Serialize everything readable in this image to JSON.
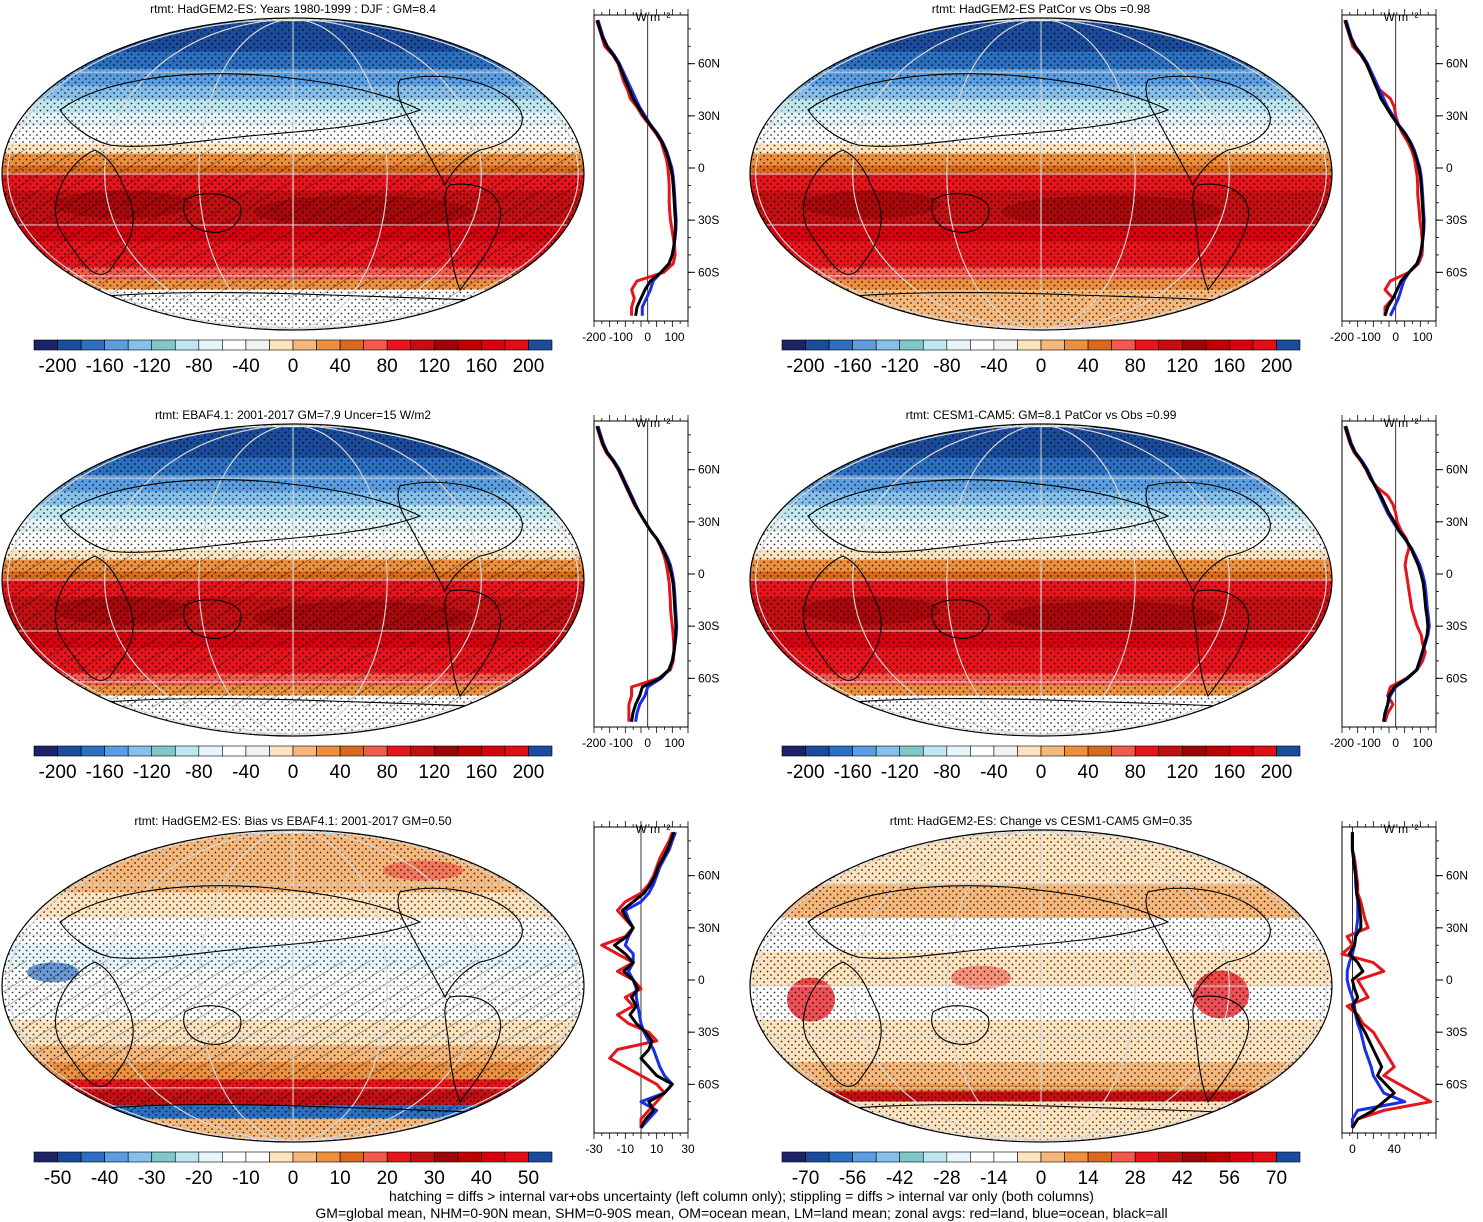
{
  "footer": {
    "line1": "hatching = diffs > internal var+obs uncertainty (left column only); stippling = diffs > internal var only (both columns)",
    "line2": "GM=global mean, NHM=0-90N mean, SHM=0-90S mean, OM=ocean mean, LM=land mean; zonal avgs: red=land, blue=ocean, black=all"
  },
  "units_label": "W m⁻²",
  "lat_ticks": [
    "60N",
    "30N",
    "0",
    "30S",
    "60S"
  ],
  "lat_values": [
    60,
    30,
    0,
    -30,
    -60
  ],
  "zonal_lat": [
    85,
    80,
    75,
    70,
    65,
    60,
    55,
    50,
    45,
    40,
    35,
    30,
    25,
    20,
    15,
    10,
    5,
    0,
    -5,
    -10,
    -15,
    -20,
    -25,
    -30,
    -35,
    -40,
    -45,
    -50,
    -55,
    -60,
    -65,
    -70,
    -75,
    -80,
    -85
  ],
  "colors": {
    "land": "#e8141c",
    "ocean": "#1a2ee8",
    "all": "#000000",
    "palette": [
      "#1c2366",
      "#1b4b9b",
      "#2b6fc0",
      "#5a9de0",
      "#86c0ea",
      "#7fc8c7",
      "#bfe7ef",
      "#e6f6fa",
      "#ffffff",
      "#f2f2f2",
      "#fde4bf",
      "#f6b77a",
      "#ec8f3f",
      "#d9691c",
      "#f35a4e",
      "#e8141c",
      "#c40f12",
      "#9e0508",
      "#bf0000",
      "#d7000f",
      "#e20e15",
      "#1b4b9b"
    ]
  },
  "panels": [
    {
      "id": "model-climatology",
      "title": "rtmt: HadGEM2-ES: Years 1980-1999 : DJF : GM=8.4",
      "colorbar_labels": [
        "-200",
        "-160",
        "-120",
        "-80",
        "-40",
        "0",
        "40",
        "80",
        "120",
        "160",
        "200"
      ],
      "zonal_ticks": [
        "-200",
        "-100",
        "0",
        "100"
      ],
      "zonal_tick_values": [
        -200,
        -100,
        0,
        100
      ],
      "chart_data": {
        "type": "line",
        "xlim": [
          -200,
          150
        ],
        "series": [
          {
            "name": "land",
            "color": "land",
            "values": [
              -190,
              -180,
              -170,
              -160,
              -130,
              -110,
              -100,
              -90,
              -75,
              -65,
              -40,
              -20,
              5,
              30,
              50,
              60,
              70,
              75,
              78,
              80,
              80,
              80,
              82,
              85,
              90,
              95,
              100,
              102,
              95,
              60,
              -40,
              -60,
              -50,
              -60,
              -60
            ]
          },
          {
            "name": "ocean",
            "color": "ocean",
            "values": [
              -185,
              -175,
              -165,
              -150,
              -125,
              -105,
              -90,
              -75,
              -60,
              -45,
              -30,
              -10,
              10,
              35,
              55,
              70,
              80,
              90,
              95,
              98,
              100,
              102,
              104,
              106,
              105,
              102,
              98,
              92,
              80,
              50,
              20,
              10,
              -5,
              -20,
              -20
            ]
          },
          {
            "name": "all",
            "color": "all",
            "values": [
              -188,
              -178,
              -168,
              -152,
              -128,
              -108,
              -95,
              -82,
              -68,
              -55,
              -35,
              -15,
              8,
              33,
              53,
              67,
              78,
              86,
              92,
              95,
              97,
              99,
              101,
              103,
              103,
              101,
              97,
              91,
              79,
              50,
              10,
              -10,
              -25,
              -40,
              -45
            ]
          }
        ]
      }
    },
    {
      "id": "model-vs-obs-patcor",
      "title": "rtmt: HadGEM2-ES PatCor vs Obs =0.98",
      "colorbar_labels": [
        "-200",
        "-160",
        "-120",
        "-80",
        "-40",
        "0",
        "40",
        "80",
        "120",
        "160",
        "200"
      ],
      "zonal_ticks": [
        "-200",
        "-100",
        "0",
        "100"
      ],
      "zonal_tick_values": [
        -200,
        -100,
        0,
        100
      ],
      "chart_data": {
        "type": "line",
        "xlim": [
          -200,
          150
        ],
        "series": [
          {
            "name": "land",
            "color": "land",
            "values": [
              -190,
              -180,
              -170,
              -160,
              -130,
              -110,
              -95,
              -80,
              -60,
              -20,
              -5,
              0,
              10,
              25,
              45,
              60,
              70,
              75,
              80,
              82,
              82,
              85,
              88,
              90,
              95,
              98,
              100,
              98,
              85,
              50,
              -20,
              -40,
              -10,
              -40,
              -40
            ]
          },
          {
            "name": "ocean",
            "color": "ocean",
            "values": [
              -185,
              -175,
              -165,
              -150,
              -125,
              -105,
              -90,
              -75,
              -60,
              -45,
              -30,
              -10,
              10,
              35,
              55,
              70,
              80,
              90,
              95,
              98,
              100,
              102,
              104,
              106,
              105,
              102,
              98,
              92,
              80,
              50,
              30,
              20,
              10,
              -5,
              -20
            ]
          },
          {
            "name": "all",
            "color": "all",
            "values": [
              -188,
              -178,
              -168,
              -152,
              -128,
              -108,
              -95,
              -82,
              -68,
              -55,
              -35,
              -15,
              8,
              33,
              53,
              67,
              78,
              86,
              92,
              95,
              97,
              99,
              101,
              103,
              103,
              101,
              97,
              91,
              79,
              50,
              20,
              5,
              -10,
              -30,
              -40
            ]
          }
        ]
      }
    },
    {
      "id": "obs-climatology",
      "title": "rtmt: EBAF4.1: 2001-2017 GM=7.9 Uncer=15 W/m2",
      "colorbar_labels": [
        "-200",
        "-160",
        "-120",
        "-80",
        "-40",
        "0",
        "40",
        "80",
        "120",
        "160",
        "200"
      ],
      "zonal_ticks": [
        "-200",
        "-100",
        "0",
        "100"
      ],
      "zonal_tick_values": [
        -200,
        -100,
        0,
        100
      ],
      "chart_data": {
        "type": "line",
        "xlim": [
          -200,
          150
        ],
        "series": [
          {
            "name": "land",
            "color": "land",
            "values": [
              -190,
              -180,
              -170,
              -155,
              -130,
              -110,
              -95,
              -80,
              -65,
              -50,
              -30,
              -10,
              10,
              35,
              50,
              62,
              70,
              75,
              80,
              82,
              84,
              85,
              88,
              92,
              95,
              97,
              98,
              95,
              85,
              40,
              -60,
              -60,
              -70,
              -70,
              -70
            ]
          },
          {
            "name": "ocean",
            "color": "ocean",
            "values": [
              -185,
              -175,
              -165,
              -150,
              -125,
              -105,
              -90,
              -75,
              -60,
              -45,
              -30,
              -10,
              10,
              35,
              55,
              72,
              85,
              92,
              97,
              100,
              102,
              104,
              106,
              108,
              106,
              102,
              98,
              92,
              80,
              50,
              0,
              -10,
              -30,
              -40,
              -45
            ]
          },
          {
            "name": "all",
            "color": "all",
            "values": [
              -188,
              -178,
              -168,
              -152,
              -128,
              -108,
              -93,
              -78,
              -63,
              -48,
              -30,
              -10,
              10,
              35,
              53,
              68,
              80,
              88,
              94,
              97,
              99,
              101,
              103,
              105,
              104,
              101,
              97,
              91,
              79,
              45,
              -20,
              -30,
              -45,
              -55,
              -60
            ]
          }
        ]
      }
    },
    {
      "id": "cesm-climatology",
      "title": "rtmt: CESM1-CAM5: GM=8.1 PatCor vs Obs =0.99",
      "colorbar_labels": [
        "-200",
        "-160",
        "-120",
        "-80",
        "-40",
        "0",
        "40",
        "80",
        "120",
        "160",
        "200"
      ],
      "zonal_ticks": [
        "-200",
        "-100",
        "0",
        "100"
      ],
      "zonal_tick_values": [
        -200,
        -100,
        0,
        100
      ],
      "chart_data": {
        "type": "line",
        "xlim": [
          -200,
          150
        ],
        "series": [
          {
            "name": "land",
            "color": "land",
            "values": [
              -190,
              -180,
              -170,
              -155,
              -130,
              -110,
              -95,
              -70,
              -30,
              -10,
              0,
              5,
              20,
              40,
              50,
              40,
              35,
              40,
              45,
              50,
              55,
              60,
              70,
              80,
              95,
              100,
              110,
              100,
              80,
              40,
              -20,
              -30,
              -10,
              -30,
              -40
            ]
          },
          {
            "name": "ocean",
            "color": "ocean",
            "values": [
              -185,
              -175,
              -165,
              -150,
              -125,
              -105,
              -90,
              -75,
              -60,
              -45,
              -30,
              -10,
              10,
              35,
              58,
              75,
              90,
              100,
              108,
              112,
              115,
              118,
              122,
              125,
              120,
              110,
              100,
              90,
              80,
              45,
              0,
              -20,
              -30,
              -40,
              -45
            ]
          },
          {
            "name": "all",
            "color": "all",
            "values": [
              -188,
              -178,
              -168,
              -152,
              -128,
              -108,
              -93,
              -75,
              -55,
              -40,
              -25,
              -5,
              12,
              37,
              56,
              70,
              84,
              94,
              102,
              106,
              109,
              112,
              117,
              120,
              117,
              108,
              99,
              89,
              78,
              43,
              -5,
              -25,
              -30,
              -40,
              -45
            ]
          }
        ]
      }
    },
    {
      "id": "bias-vs-obs",
      "title": "rtmt: HadGEM2-ES: Bias vs EBAF4.1: 2001-2017 GM=0.50",
      "colorbar_labels": [
        "-50",
        "-40",
        "-30",
        "-20",
        "-10",
        "0",
        "10",
        "20",
        "30",
        "40",
        "50"
      ],
      "zonal_ticks": [
        "-30",
        "-10",
        "10",
        "30"
      ],
      "zonal_tick_values": [
        -30,
        -10,
        10,
        30
      ],
      "chart_data": {
        "type": "line",
        "xlim": [
          -30,
          30
        ],
        "series": [
          {
            "name": "land",
            "color": "land",
            "values": [
              20,
              18,
              15,
              12,
              10,
              8,
              5,
              0,
              -10,
              -15,
              -10,
              -5,
              -10,
              -25,
              -15,
              -5,
              -15,
              -5,
              0,
              -10,
              -5,
              -15,
              -8,
              5,
              10,
              -15,
              -20,
              -10,
              0,
              10,
              15,
              10,
              5,
              0,
              0
            ]
          },
          {
            "name": "ocean",
            "color": "ocean",
            "values": [
              22,
              20,
              18,
              15,
              12,
              10,
              8,
              5,
              0,
              -10,
              -8,
              -5,
              -8,
              -10,
              -5,
              -5,
              -8,
              -5,
              -3,
              -3,
              -2,
              -1,
              0,
              2,
              5,
              8,
              10,
              12,
              15,
              20,
              15,
              0,
              10,
              5,
              0
            ]
          },
          {
            "name": "all",
            "color": "all",
            "values": [
              21,
              19,
              17,
              14,
              11,
              9,
              6,
              2,
              -5,
              -12,
              -9,
              -5,
              -9,
              -17,
              -10,
              -5,
              -11,
              -5,
              -2,
              -6,
              -3,
              -7,
              -3,
              3,
              7,
              5,
              0,
              5,
              10,
              20,
              15,
              5,
              8,
              3,
              0
            ]
          }
        ]
      }
    },
    {
      "id": "change-vs-cesm",
      "title": "rtmt: HadGEM2-ES: Change vs CESM1-CAM5 GM=0.35",
      "colorbar_labels": [
        "-70",
        "-56",
        "-42",
        "-28",
        "-14",
        "0",
        "14",
        "28",
        "42",
        "56",
        "70"
      ],
      "zonal_ticks": [
        "0",
        "40"
      ],
      "zonal_tick_values": [
        0,
        40
      ],
      "chart_data": {
        "type": "line",
        "xlim": [
          -10,
          80
        ],
        "series": [
          {
            "name": "land",
            "color": "land",
            "values": [
              0,
              0,
              0,
              2,
              3,
              4,
              5,
              5,
              8,
              10,
              12,
              15,
              -5,
              0,
              -10,
              20,
              30,
              5,
              10,
              15,
              -5,
              5,
              10,
              20,
              25,
              30,
              35,
              40,
              30,
              45,
              60,
              75,
              30,
              5,
              0
            ]
          },
          {
            "name": "ocean",
            "color": "ocean",
            "values": [
              0,
              0,
              0,
              1,
              2,
              3,
              3,
              4,
              5,
              5,
              5,
              4,
              3,
              2,
              0,
              -3,
              -5,
              -5,
              -3,
              0,
              2,
              3,
              5,
              8,
              10,
              12,
              15,
              18,
              20,
              25,
              30,
              50,
              5,
              0,
              0
            ]
          },
          {
            "name": "all",
            "color": "all",
            "values": [
              0,
              0,
              0,
              1,
              2,
              3,
              4,
              4,
              6,
              7,
              8,
              8,
              3,
              2,
              -3,
              5,
              10,
              0,
              2,
              5,
              0,
              4,
              7,
              12,
              16,
              20,
              24,
              28,
              24,
              32,
              40,
              30,
              20,
              5,
              0
            ]
          }
        ]
      }
    }
  ]
}
